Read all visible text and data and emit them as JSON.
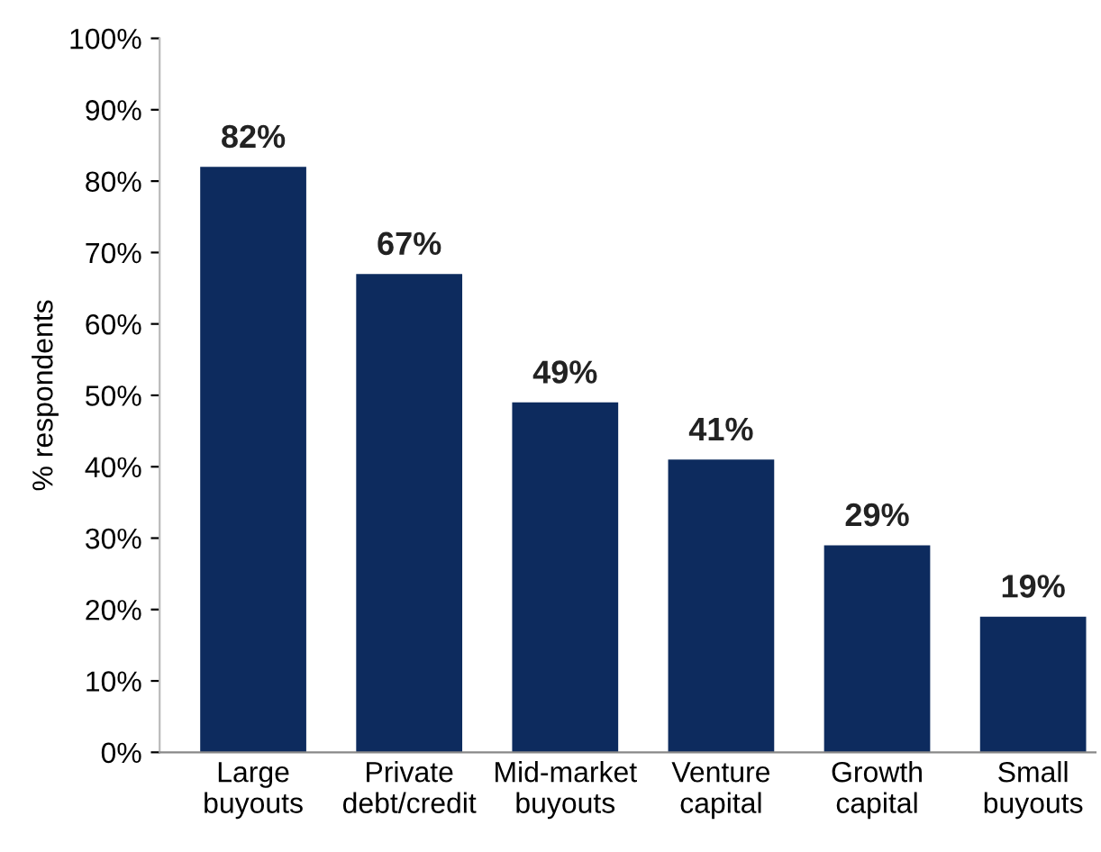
{
  "chart_data": {
    "type": "bar",
    "ylabel": "% respondents",
    "categories": [
      "Large\nbuyouts",
      "Private\ndebt/credit",
      "Mid-market\nbuyouts",
      "Venture\ncapital",
      "Growth\ncapital",
      "Small\nbuyouts"
    ],
    "values": [
      82,
      67,
      49,
      41,
      29,
      19
    ],
    "value_labels": [
      "82%",
      "67%",
      "49%",
      "41%",
      "29%",
      "19%"
    ],
    "color": "#0d2b5e",
    "ylim": [
      0,
      100
    ],
    "yticks": [
      {
        "value": 0,
        "label": "0%"
      },
      {
        "value": 10,
        "label": "10%"
      },
      {
        "value": 20,
        "label": "20%"
      },
      {
        "value": 30,
        "label": "30%"
      },
      {
        "value": 40,
        "label": "40%"
      },
      {
        "value": 50,
        "label": "50%"
      },
      {
        "value": 60,
        "label": "60%"
      },
      {
        "value": 70,
        "label": "70%"
      },
      {
        "value": 80,
        "label": "80%"
      },
      {
        "value": 90,
        "label": "90%"
      },
      {
        "value": 100,
        "label": "100%"
      }
    ],
    "grid": false,
    "legend": false
  }
}
